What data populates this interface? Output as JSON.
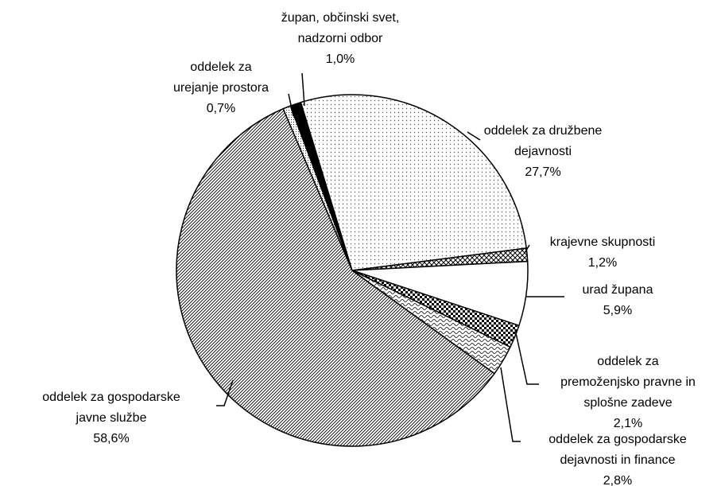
{
  "chart_data": {
    "type": "pie",
    "categories": [
      [
        "župan, občinski svet,",
        "nadzorni odbor"
      ],
      [
        "oddelek za družbene",
        "dejavnosti"
      ],
      [
        "krajevne skupnosti"
      ],
      [
        "urad župana"
      ],
      [
        "oddelek za",
        "premoženjsko pravne in",
        "splošne zadeve"
      ],
      [
        "oddelek za gospodarske",
        "dejavnosti in finance"
      ],
      [
        "oddelek za gospodarske",
        "javne službe"
      ],
      [
        "oddelek za",
        "urejanje prostora"
      ]
    ],
    "values": [
      1.0,
      27.7,
      1.2,
      5.9,
      2.1,
      2.8,
      58.6,
      0.7
    ],
    "value_labels": [
      "1,0%",
      "27,7%",
      "1,2%",
      "5,9%",
      "2,1%",
      "2,8%",
      "58,6%",
      "0,7%"
    ],
    "patterns": [
      "solid",
      "dots",
      "crosshatch",
      "none",
      "checker",
      "wave",
      "diagonal",
      "fine-dots"
    ]
  }
}
